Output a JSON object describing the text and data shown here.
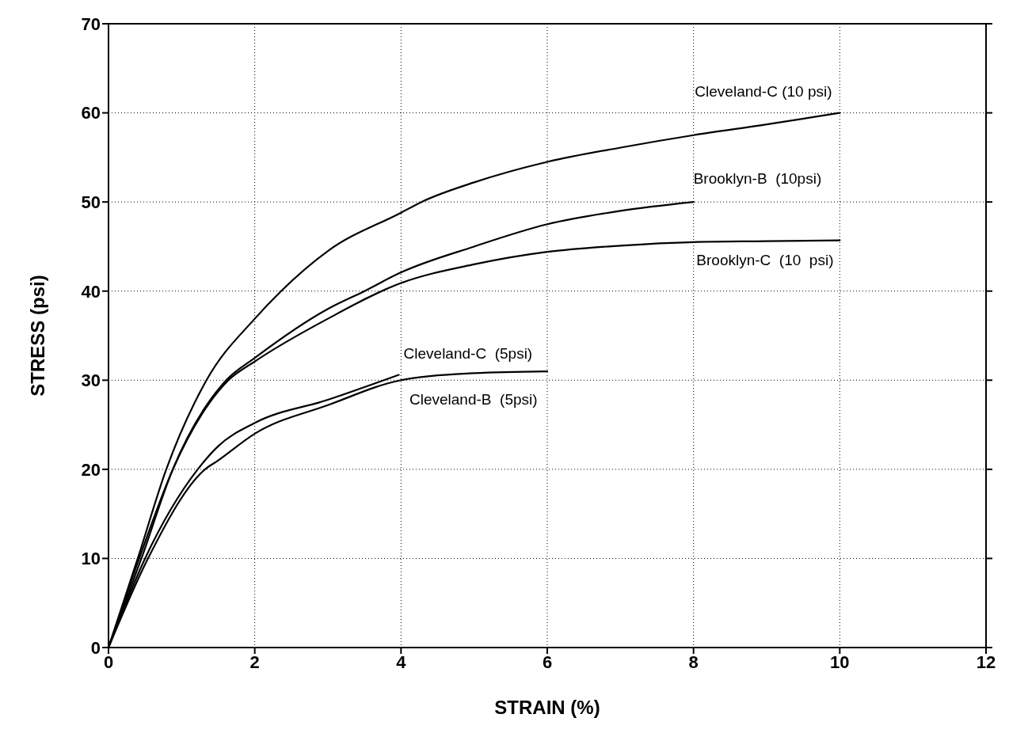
{
  "chart_data": {
    "type": "line",
    "xlabel": "STRAIN (%)",
    "ylabel": "STRESS (psi)",
    "xlim": [
      0,
      12
    ],
    "xticks": [
      0,
      2,
      4,
      6,
      8,
      10,
      12
    ],
    "ylim": [
      0,
      70
    ],
    "yticks": [
      0,
      10,
      20,
      30,
      40,
      50,
      60,
      70
    ],
    "grid": true,
    "marker": "none",
    "line_style": "solid",
    "series": [
      {
        "name": "Cleveland-C (10 psi)",
        "color": "#000000",
        "x": [
          0,
          0.4,
          0.79,
          1.34,
          2,
          2.36,
          3,
          4,
          4.28,
          5,
          6,
          7,
          8,
          9,
          10
        ],
        "values": [
          0,
          10,
          20,
          30,
          36.9,
          40,
          44.5,
          48.8,
          50,
          52.2,
          54.5,
          56.1,
          57.5,
          58.7,
          60
        ]
      },
      {
        "name": "Brooklyn-B  (10psi)",
        "color": "#000000",
        "x": [
          0,
          0.45,
          0.88,
          1.61,
          2,
          3,
          3.5,
          4,
          5,
          6,
          7,
          8
        ],
        "values": [
          0,
          10,
          20,
          30,
          32.5,
          38,
          40,
          42.1,
          45,
          47.5,
          49,
          50
        ]
      },
      {
        "name": "Brooklyn-C  (10  psi)",
        "color": "#000000",
        "x": [
          0,
          0.42,
          0.88,
          1.64,
          2,
          3,
          4,
          5,
          6,
          7,
          8,
          9,
          10
        ],
        "values": [
          0,
          10,
          20,
          30,
          32.1,
          36.9,
          40.9,
          43,
          44.4,
          45.1,
          45.5,
          45.6,
          45.7
        ]
      },
      {
        "name": "Cleveland-C  (5psi)",
        "color": "#000000",
        "x": [
          0,
          0.5,
          1.22,
          1.5,
          2,
          3,
          3.97
        ],
        "values": [
          0,
          10,
          20,
          22.6,
          25.2,
          27.8,
          30.6
        ]
      },
      {
        "name": "Cleveland-B  (5psi)",
        "color": "#000000",
        "x": [
          0,
          0.54,
          1.32,
          1.5,
          2,
          3,
          4,
          5,
          6
        ],
        "values": [
          0,
          10,
          20,
          21,
          24,
          27.2,
          30,
          30.8,
          31
        ]
      }
    ]
  }
}
